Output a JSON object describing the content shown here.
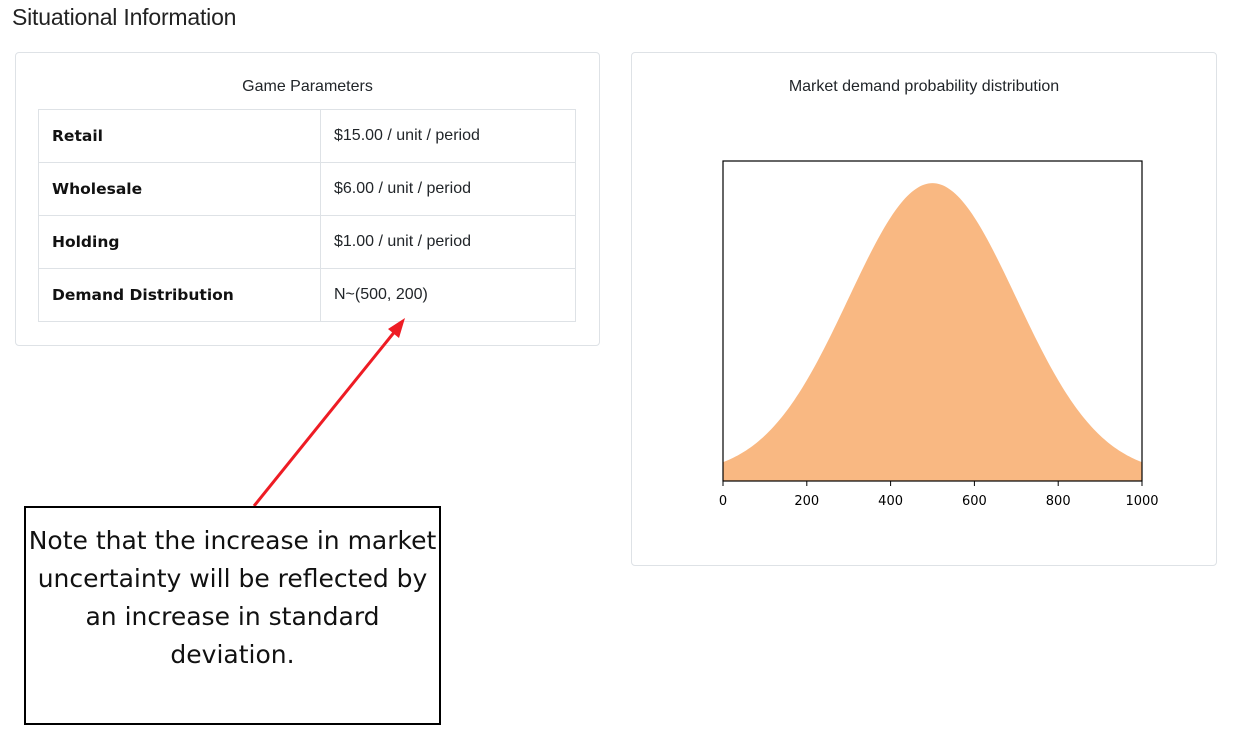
{
  "page": {
    "title": "Situational Information"
  },
  "parameters": {
    "title": "Game Parameters",
    "rows": [
      {
        "label": "Retail",
        "value": "$15.00 / unit / period"
      },
      {
        "label": "Wholesale",
        "value": "$6.00 / unit / period"
      },
      {
        "label": "Holding",
        "value": "$1.00 / unit / period"
      },
      {
        "label": "Demand Distribution",
        "value": "N~(500, 200)"
      }
    ]
  },
  "chart_data": {
    "type": "area",
    "title": "Market demand probability distribution",
    "distribution": "normal",
    "mean": 500,
    "std": 200,
    "xlim": [
      0,
      1000
    ],
    "xticks": [
      0,
      200,
      400,
      600,
      800,
      1000
    ],
    "yticks_visible": false,
    "fill_color": "#f9b882",
    "grid": false
  },
  "annotation": {
    "text": "Note that the increase in market uncertainty will be reflected by an increase in standard deviation.",
    "arrow_color": "#ee1c24"
  }
}
